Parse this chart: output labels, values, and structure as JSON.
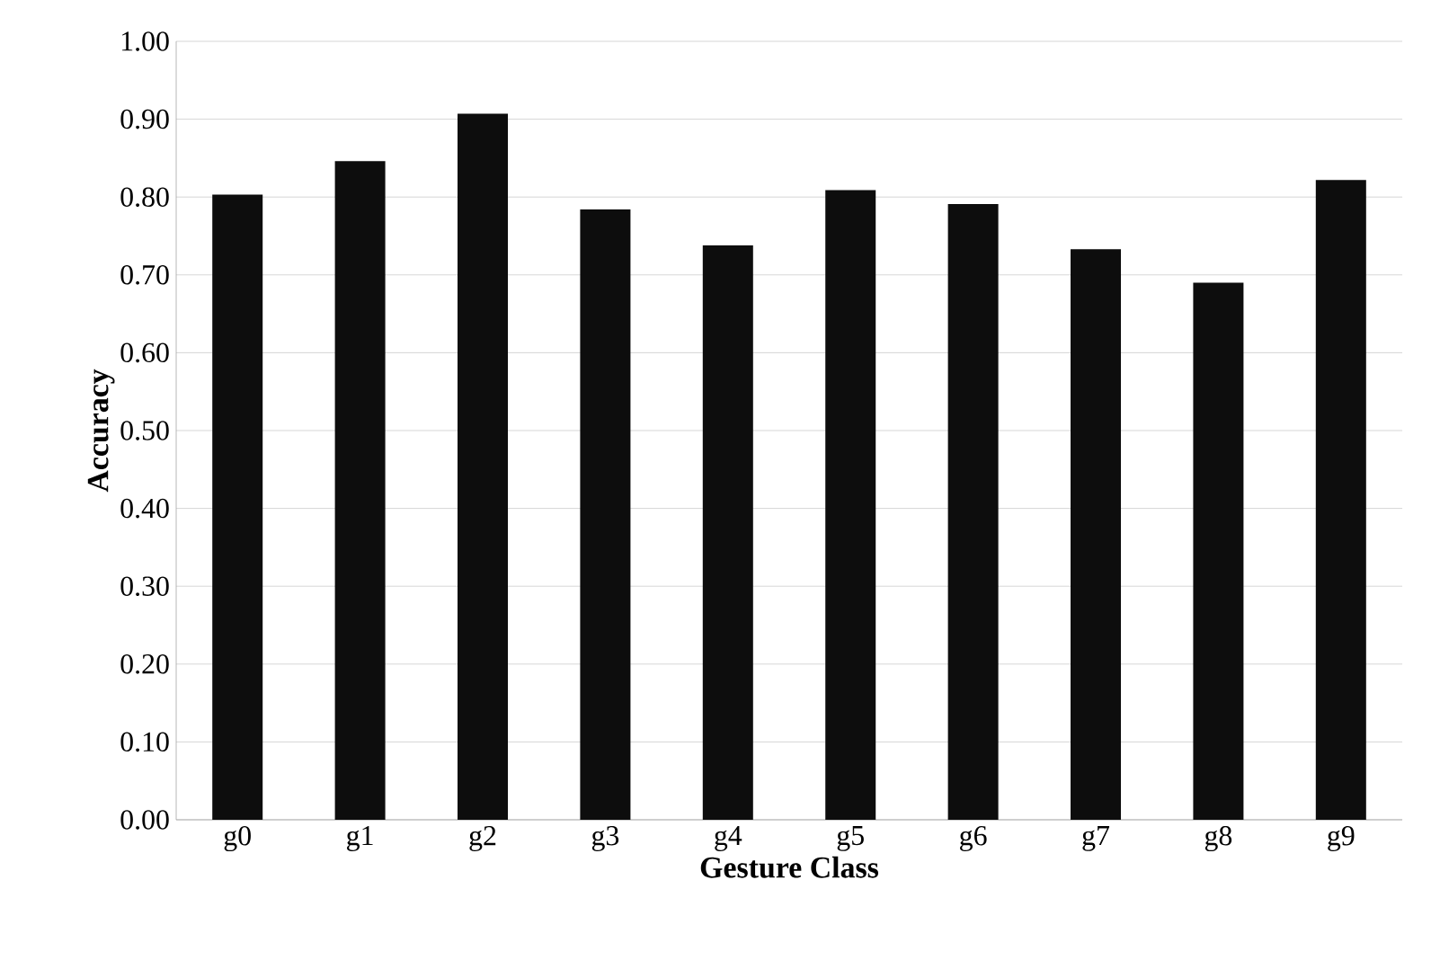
{
  "chart_data": {
    "type": "bar",
    "xlabel": "Gesture Class",
    "ylabel": "Accuracy",
    "categories": [
      "g0",
      "g1",
      "g2",
      "g3",
      "g4",
      "g5",
      "g6",
      "g7",
      "g8",
      "g9"
    ],
    "values": [
      0.803,
      0.846,
      0.907,
      0.784,
      0.738,
      0.809,
      0.791,
      0.733,
      0.69,
      0.822
    ],
    "color": "#0d0d0d",
    "ylim": [
      0,
      1
    ],
    "yticks": [
      {
        "value": 0,
        "label": "0.00"
      },
      {
        "value": 0.1,
        "label": "0.10"
      },
      {
        "value": 0.2,
        "label": "0.20"
      },
      {
        "value": 0.3,
        "label": "0.30"
      },
      {
        "value": 0.4,
        "label": "0.40"
      },
      {
        "value": 0.5,
        "label": "0.50"
      },
      {
        "value": 0.6,
        "label": "0.60"
      },
      {
        "value": 0.7,
        "label": "0.70"
      },
      {
        "value": 0.8,
        "label": "0.80"
      },
      {
        "value": 0.9,
        "label": "0.90"
      },
      {
        "value": 1,
        "label": "1.00"
      }
    ],
    "grid": "y"
  }
}
